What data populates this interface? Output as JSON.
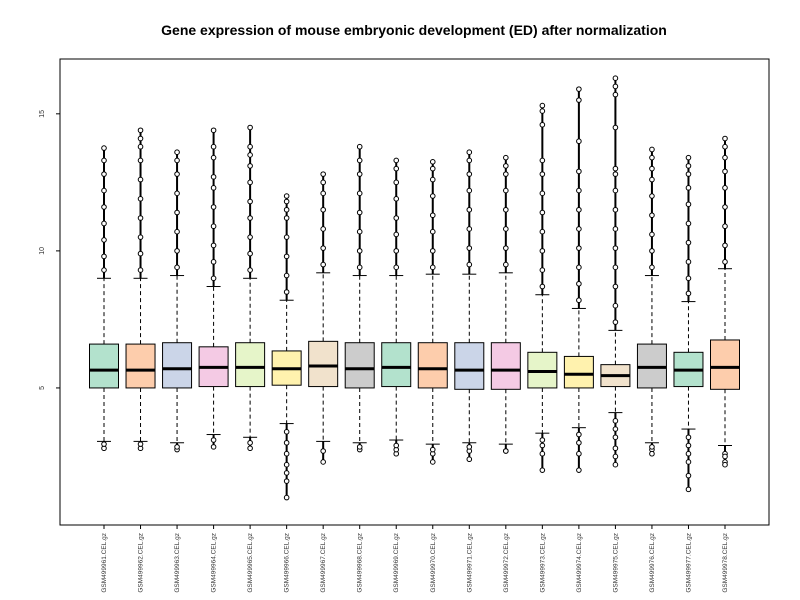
{
  "chart_data": {
    "type": "box",
    "title": "Gene expression of mouse embryonic development (ED) after normalization",
    "xlabel": "",
    "ylabel": "",
    "ylim": [
      0.0,
      17.0
    ],
    "grid": false,
    "y_ticks": [
      {
        "value": 5,
        "label": "5"
      },
      {
        "value": 10,
        "label": "10"
      },
      {
        "value": 15,
        "label": "15"
      }
    ],
    "categories": [
      "GSM499961.CEL.gz",
      "GSM499962.CEL.gz",
      "GSM499963.CEL.gz",
      "GSM499964.CEL.gz",
      "GSM499965.CEL.gz",
      "GSM499966.CEL.gz",
      "GSM499967.CEL.gz",
      "GSM499968.CEL.gz",
      "GSM499969.CEL.gz",
      "GSM499970.CEL.gz",
      "GSM499971.CEL.gz",
      "GSM499972.CEL.gz",
      "GSM499973.CEL.gz",
      "GSM499974.CEL.gz",
      "GSM499975.CEL.gz",
      "GSM499976.CEL.gz",
      "GSM499977.CEL.gz",
      "GSM499978.CEL.gz"
    ],
    "boxes": [
      {
        "color": "#b3e2cd",
        "whisker_low": 3.05,
        "q1": 5.0,
        "median": 5.65,
        "q3": 6.6,
        "whisker_high": 9.0,
        "outliers_high": [
          9.3,
          9.8,
          10.4,
          11.0,
          11.6,
          12.2,
          12.8,
          13.3,
          13.75
        ],
        "outliers_low": [
          2.8,
          2.95
        ]
      },
      {
        "color": "#fdcdac",
        "whisker_low": 3.05,
        "q1": 5.0,
        "median": 5.65,
        "q3": 6.6,
        "whisker_high": 9.0,
        "outliers_high": [
          9.3,
          9.9,
          10.5,
          11.2,
          11.9,
          12.6,
          13.3,
          13.8,
          14.1,
          14.4
        ],
        "outliers_low": [
          2.8,
          2.95
        ]
      },
      {
        "color": "#cbd5e8",
        "whisker_low": 3.0,
        "q1": 5.0,
        "median": 5.7,
        "q3": 6.65,
        "whisker_high": 9.1,
        "outliers_high": [
          9.4,
          10.0,
          10.7,
          11.4,
          12.1,
          12.8,
          13.3,
          13.6
        ],
        "outliers_low": [
          2.75,
          2.85
        ]
      },
      {
        "color": "#f4cae4",
        "whisker_low": 3.3,
        "q1": 5.05,
        "median": 5.75,
        "q3": 6.5,
        "whisker_high": 8.7,
        "outliers_high": [
          9.0,
          9.6,
          10.2,
          10.9,
          11.6,
          12.3,
          12.7,
          13.4,
          13.8,
          14.4
        ],
        "outliers_low": [
          2.85,
          3.1
        ]
      },
      {
        "color": "#e6f5c9",
        "whisker_low": 3.2,
        "q1": 5.05,
        "median": 5.75,
        "q3": 6.65,
        "whisker_high": 9.0,
        "outliers_high": [
          9.3,
          9.9,
          10.5,
          11.2,
          11.8,
          12.5,
          13.1,
          13.5,
          13.8,
          14.5
        ],
        "outliers_low": [
          2.8,
          3.0
        ]
      },
      {
        "color": "#fff2ae",
        "whisker_low": 3.7,
        "q1": 5.1,
        "median": 5.7,
        "q3": 6.35,
        "whisker_high": 8.2,
        "outliers_high": [
          8.5,
          9.1,
          9.8,
          10.5,
          11.2,
          11.5,
          11.8,
          12.0
        ],
        "outliers_low": [
          3.4,
          3.0,
          2.6,
          2.2,
          1.9,
          1.6,
          1.0
        ]
      },
      {
        "color": "#f1e2cc",
        "whisker_low": 3.05,
        "q1": 5.05,
        "median": 5.8,
        "q3": 6.7,
        "whisker_high": 9.2,
        "outliers_high": [
          9.5,
          10.1,
          10.8,
          11.5,
          12.1,
          12.5,
          12.8
        ],
        "outliers_low": [
          2.7,
          2.3
        ]
      },
      {
        "color": "#cccccc",
        "whisker_low": 3.0,
        "q1": 5.0,
        "median": 5.7,
        "q3": 6.65,
        "whisker_high": 9.1,
        "outliers_high": [
          9.4,
          10.0,
          10.7,
          11.4,
          12.1,
          12.8,
          13.3,
          13.8
        ],
        "outliers_low": [
          2.75,
          2.85
        ]
      },
      {
        "color": "#b3e2cd",
        "whisker_low": 3.1,
        "q1": 5.05,
        "median": 5.75,
        "q3": 6.65,
        "whisker_high": 9.1,
        "outliers_high": [
          9.4,
          10.0,
          10.6,
          11.2,
          11.9,
          12.5,
          13.0,
          13.3
        ],
        "outliers_low": [
          2.6,
          2.75,
          2.9
        ]
      },
      {
        "color": "#fdcdac",
        "whisker_low": 2.95,
        "q1": 5.0,
        "median": 5.7,
        "q3": 6.65,
        "whisker_high": 9.15,
        "outliers_high": [
          9.4,
          10.0,
          10.7,
          11.3,
          12.0,
          12.6,
          13.0,
          13.25
        ],
        "outliers_low": [
          2.6,
          2.75,
          2.3
        ]
      },
      {
        "color": "#cbd5e8",
        "whisker_low": 3.0,
        "q1": 4.95,
        "median": 5.65,
        "q3": 6.65,
        "whisker_high": 9.15,
        "outliers_high": [
          9.5,
          10.1,
          10.8,
          11.5,
          12.2,
          12.8,
          13.3,
          13.6
        ],
        "outliers_low": [
          2.7,
          2.85,
          2.4
        ]
      },
      {
        "color": "#f4cae4",
        "whisker_low": 2.95,
        "q1": 4.95,
        "median": 5.65,
        "q3": 6.65,
        "whisker_high": 9.2,
        "outliers_high": [
          9.5,
          10.1,
          10.8,
          11.5,
          12.2,
          12.8,
          13.1,
          13.4
        ],
        "outliers_low": [
          2.7,
          2.7
        ]
      },
      {
        "color": "#e6f5c9",
        "whisker_low": 3.35,
        "q1": 5.0,
        "median": 5.6,
        "q3": 6.3,
        "whisker_high": 8.4,
        "outliers_high": [
          8.7,
          9.3,
          10.0,
          10.7,
          11.4,
          12.1,
          12.8,
          13.3,
          14.6,
          15.1,
          15.3
        ],
        "outliers_low": [
          3.1,
          2.9,
          2.6,
          2.0
        ]
      },
      {
        "color": "#fff2ae",
        "whisker_low": 3.55,
        "q1": 5.0,
        "median": 5.5,
        "q3": 6.15,
        "whisker_high": 7.9,
        "outliers_high": [
          8.2,
          8.8,
          9.4,
          10.1,
          10.8,
          11.5,
          12.2,
          12.9,
          14.0,
          15.5,
          15.9
        ],
        "outliers_low": [
          3.3,
          3.0,
          2.6,
          2.0
        ]
      },
      {
        "color": "#f1e2cc",
        "whisker_low": 4.1,
        "q1": 5.05,
        "median": 5.45,
        "q3": 5.85,
        "whisker_high": 7.1,
        "outliers_high": [
          7.4,
          8.0,
          8.7,
          9.4,
          10.1,
          10.8,
          11.5,
          12.2,
          12.8,
          13.0,
          14.5,
          15.7,
          16.0,
          16.3
        ],
        "outliers_low": [
          3.8,
          3.5,
          3.2,
          2.8,
          2.5,
          2.2
        ]
      },
      {
        "color": "#cccccc",
        "whisker_low": 3.0,
        "q1": 5.0,
        "median": 5.75,
        "q3": 6.6,
        "whisker_high": 9.1,
        "outliers_high": [
          9.4,
          10.0,
          10.6,
          11.3,
          12.0,
          12.6,
          13.0,
          13.4,
          13.7
        ],
        "outliers_low": [
          2.75,
          2.85,
          2.6
        ]
      },
      {
        "color": "#b3e2cd",
        "whisker_low": 3.5,
        "q1": 5.05,
        "median": 5.65,
        "q3": 6.3,
        "whisker_high": 8.15,
        "outliers_high": [
          8.45,
          9.0,
          9.6,
          10.3,
          11.0,
          11.7,
          12.3,
          12.8,
          13.1,
          13.4
        ],
        "outliers_low": [
          3.2,
          2.9,
          2.6,
          2.3,
          1.8,
          1.3
        ]
      },
      {
        "color": "#fdcdac",
        "whisker_low": 2.9,
        "q1": 4.95,
        "median": 5.75,
        "q3": 6.75,
        "whisker_high": 9.35,
        "outliers_high": [
          9.6,
          10.2,
          10.9,
          11.6,
          12.3,
          12.9,
          13.4,
          13.8,
          14.1
        ],
        "outliers_low": [
          2.6,
          2.5,
          2.3,
          2.2
        ]
      }
    ]
  }
}
